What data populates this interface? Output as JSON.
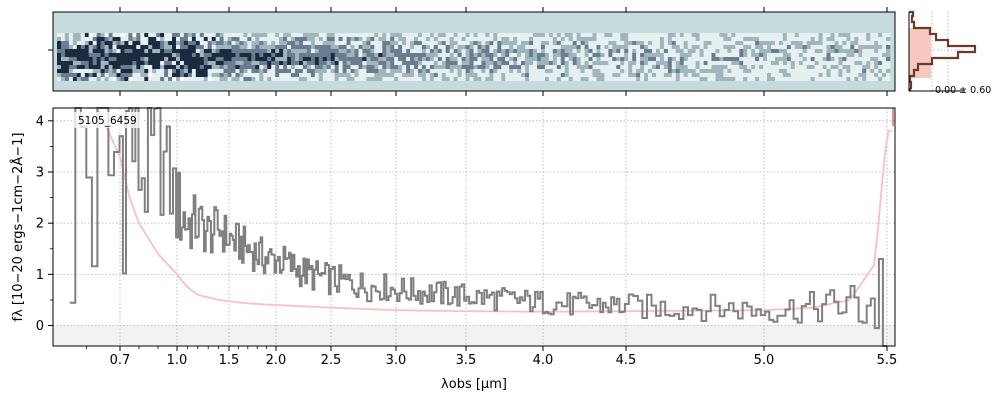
{
  "chart_data": [
    {
      "type": "heatmap",
      "panel": "2D spectrum",
      "description_colors": {
        "background": "#c6dcdc",
        "dark": "#1a2a40",
        "light": "#ffffff"
      }
    },
    {
      "type": "line",
      "panel": "1D spectrum",
      "object_label": "5105_6459",
      "xlabel": "λobs [μm]",
      "ylabel": "fλ [10−20 ergs−1cm−2Å−1]",
      "xlim": [
        0.5,
        5.53
      ],
      "x_scale": "pseudo-log",
      "ylim": [
        -0.4,
        4.25
      ],
      "grid": true,
      "x_ticks": [
        "0.7",
        "1.0",
        "1.5",
        "2.0",
        "2.5",
        "3.0",
        "3.5",
        "4.0",
        "4.5",
        "5.0",
        "5.5"
      ],
      "y_ticks": [
        "0",
        "1",
        "2",
        "3",
        "4"
      ],
      "series": [
        {
          "role": "flux",
          "color": "#808080",
          "x": [
            0.6,
            0.65,
            0.7,
            0.75,
            0.8,
            0.85,
            0.9,
            0.95,
            1.0,
            1.1,
            1.2,
            1.3,
            1.4,
            1.5,
            1.6,
            1.7,
            1.8,
            1.9,
            2.0,
            2.1,
            2.2,
            2.3,
            2.4,
            2.5,
            2.6,
            2.7,
            2.8,
            2.9,
            3.0,
            3.2,
            3.4,
            3.6,
            3.8,
            4.0,
            4.2,
            4.4,
            4.6,
            4.8,
            5.0,
            5.2,
            5.4,
            5.5
          ],
          "y": [
            3.3,
            2.6,
            3.6,
            3.8,
            3.2,
            3.0,
            3.4,
            2.9,
            2.3,
            2.0,
            2.0,
            1.8,
            1.9,
            1.7,
            1.6,
            1.5,
            1.4,
            1.3,
            1.3,
            1.2,
            1.1,
            1.0,
            0.95,
            0.9,
            0.85,
            0.8,
            0.75,
            0.75,
            0.7,
            0.65,
            0.6,
            0.55,
            0.5,
            0.45,
            0.4,
            0.4,
            0.35,
            0.35,
            0.3,
            0.35,
            0.45,
            0.5
          ]
        },
        {
          "role": "uncertainty",
          "color": "#f9c0c0",
          "x": [
            0.6,
            0.65,
            0.7,
            0.75,
            0.8,
            0.9,
            1.0,
            1.1,
            1.2,
            1.4,
            1.6,
            1.8,
            2.0,
            2.5,
            3.0,
            3.5,
            4.0,
            4.5,
            5.0,
            5.2,
            5.35,
            5.45,
            5.5
          ],
          "y": [
            5.0,
            4.0,
            3.3,
            2.5,
            2.0,
            1.4,
            1.0,
            0.75,
            0.6,
            0.5,
            0.45,
            0.42,
            0.4,
            0.35,
            0.3,
            0.28,
            0.27,
            0.28,
            0.3,
            0.35,
            0.5,
            1.2,
            3.8
          ]
        }
      ]
    },
    {
      "type": "bar",
      "panel": "profile histogram",
      "annotation": "0.00 ± 0.60"
    }
  ]
}
